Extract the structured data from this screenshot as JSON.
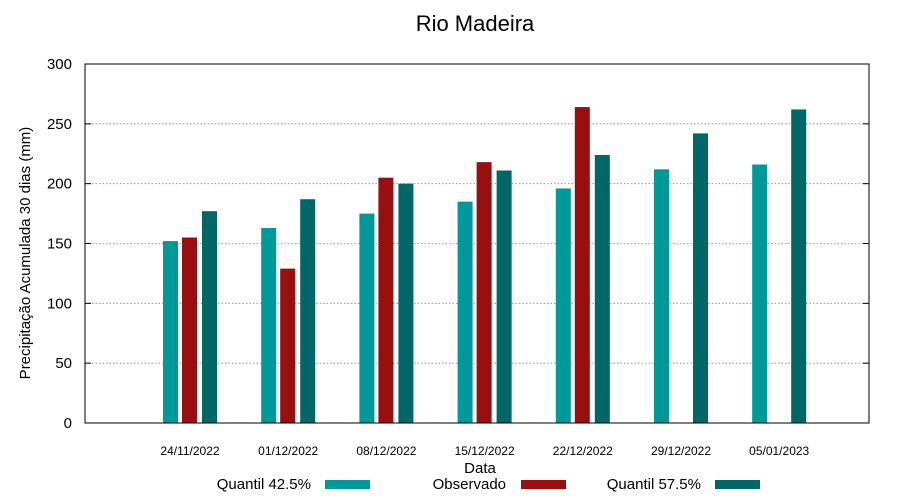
{
  "chart_data": {
    "type": "bar",
    "title": "Rio Madeira",
    "xlabel": "Data",
    "ylabel": "Precipitação Acumulada 30 dias (mm)",
    "ylim": [
      0,
      300
    ],
    "yticks": [
      "0",
      "50",
      "100",
      "150",
      "200",
      "250",
      "300"
    ],
    "grid": true,
    "legend_position": "bottom",
    "categories": [
      "24/11/2022",
      "01/12/2022",
      "08/12/2022",
      "15/12/2022",
      "22/12/2022",
      "29/12/2022",
      "05/01/2023"
    ],
    "series": [
      {
        "name": "Quantil 42.5%",
        "color": "#009999",
        "values": [
          152,
          163,
          175,
          185,
          196,
          212,
          216
        ]
      },
      {
        "name": "Observado",
        "color": "#990f0f",
        "values": [
          155,
          129,
          205,
          218,
          264,
          null,
          null
        ]
      },
      {
        "name": "Quantil 57.5%",
        "color": "#006666",
        "values": [
          177,
          187,
          200,
          211,
          224,
          242,
          262
        ]
      }
    ]
  }
}
